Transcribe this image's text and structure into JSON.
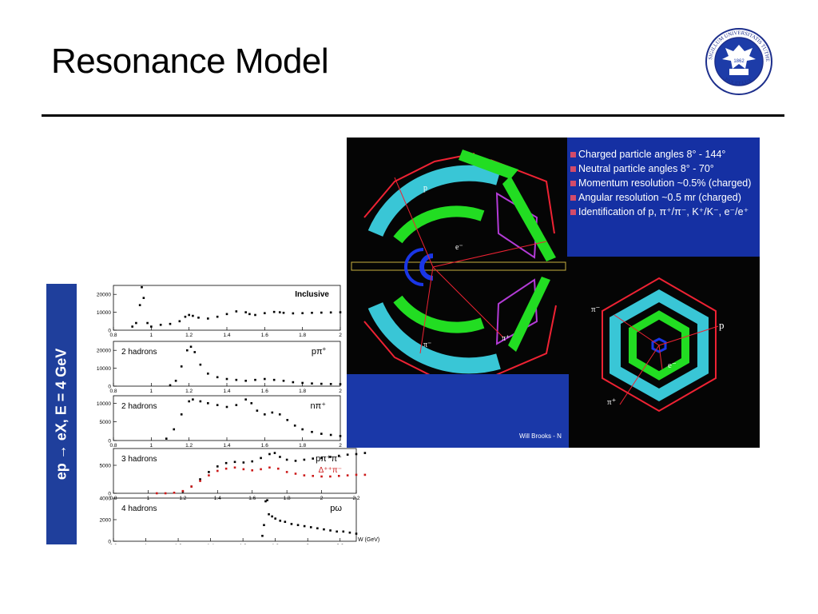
{
  "slide": {
    "title": "Resonance Model"
  },
  "logo": {
    "icon": "university-seal-icon",
    "text": "SIGILLUM UNIVERSITATIS TUTHEENSIS · PAX ET LUX",
    "year": "1862"
  },
  "plot_panel": {
    "side_label": "ep → eX, E = 4 GeV",
    "x_axis_label": "W (GeV)",
    "chart_data": [
      {
        "type": "scatter",
        "title": "Inclusive",
        "xlim": [
          0.8,
          2.0
        ],
        "ylim": [
          0,
          25000
        ],
        "y_ticks": [
          "0",
          "10000",
          "20000"
        ],
        "x_ticks": [
          "0.8",
          "1",
          "1.2",
          "1.4",
          "1.6",
          "1.8",
          "2"
        ],
        "x": [
          0.9,
          0.92,
          0.94,
          0.95,
          0.96,
          0.98,
          1.0,
          1.05,
          1.1,
          1.15,
          1.18,
          1.2,
          1.22,
          1.25,
          1.3,
          1.35,
          1.4,
          1.45,
          1.5,
          1.52,
          1.55,
          1.6,
          1.65,
          1.68,
          1.7,
          1.75,
          1.8,
          1.85,
          1.9,
          1.95,
          2.0
        ],
        "y": [
          2000,
          4000,
          14000,
          24000,
          18000,
          4000,
          2000,
          3000,
          3500,
          5000,
          7500,
          8500,
          8000,
          7000,
          6500,
          7500,
          9000,
          10500,
          10000,
          9000,
          8500,
          9500,
          10200,
          10000,
          9700,
          9400,
          9500,
          9700,
          9800,
          9900,
          10000
        ]
      },
      {
        "type": "scatter",
        "label": "2 hadrons",
        "channel": "pπ°",
        "xlim": [
          0.8,
          2.0
        ],
        "ylim": [
          0,
          25000
        ],
        "y_ticks": [
          "0",
          "10000",
          "20000"
        ],
        "x_ticks": [
          "0.8",
          "1",
          "1.2",
          "1.4",
          "1.6",
          "1.8",
          "2"
        ],
        "x": [
          1.1,
          1.13,
          1.16,
          1.19,
          1.21,
          1.23,
          1.26,
          1.3,
          1.35,
          1.4,
          1.45,
          1.5,
          1.55,
          1.6,
          1.65,
          1.7,
          1.75,
          1.8,
          1.85,
          1.9,
          1.95,
          2.0
        ],
        "y": [
          500,
          3000,
          11000,
          20000,
          22000,
          19000,
          12000,
          7000,
          5000,
          4000,
          3500,
          3000,
          3500,
          4000,
          3500,
          3000,
          2200,
          1800,
          1500,
          1300,
          1200,
          1100
        ]
      },
      {
        "type": "scatter",
        "label": "2 hadrons",
        "channel": "nπ⁺",
        "xlim": [
          0.8,
          2.0
        ],
        "ylim": [
          0,
          12000
        ],
        "y_ticks": [
          "0",
          "5000",
          "10000"
        ],
        "x_ticks": [
          "0.8",
          "1",
          "1.2",
          "1.4",
          "1.6",
          "1.8",
          "2"
        ],
        "x": [
          1.08,
          1.12,
          1.16,
          1.2,
          1.22,
          1.26,
          1.3,
          1.35,
          1.4,
          1.45,
          1.5,
          1.53,
          1.56,
          1.6,
          1.64,
          1.68,
          1.72,
          1.76,
          1.8,
          1.85,
          1.9,
          1.95,
          2.0
        ],
        "y": [
          500,
          3000,
          7000,
          10500,
          11000,
          10500,
          10000,
          9500,
          9000,
          9500,
          11000,
          10000,
          8000,
          7000,
          7500,
          7000,
          5500,
          4000,
          3000,
          2300,
          1800,
          1500,
          1200
        ]
      },
      {
        "type": "scatter",
        "label": "3 hadrons",
        "channel": "pπ⁺π⁻",
        "sub_channel": "Δ⁺⁺π⁻",
        "xlim": [
          0.8,
          2.2
        ],
        "ylim": [
          0,
          8000
        ],
        "y_ticks": [
          "0",
          "5000"
        ],
        "x_ticks": [
          "0.8",
          "1",
          "1.2",
          "1.4",
          "1.6",
          "1.8",
          "2",
          "2.2"
        ],
        "series": [
          {
            "name": "pπ⁺π⁻",
            "color": "#000000",
            "x": [
              1.2,
              1.25,
              1.3,
              1.35,
              1.4,
              1.45,
              1.5,
              1.55,
              1.6,
              1.65,
              1.7,
              1.73,
              1.76,
              1.8,
              1.85,
              1.9,
              1.95,
              2.0,
              2.05,
              2.1,
              2.15,
              2.2,
              2.25
            ],
            "y": [
              300,
              1200,
              2500,
              3800,
              4800,
              5400,
              5600,
              5500,
              5700,
              6300,
              7000,
              7200,
              6500,
              6000,
              5800,
              6000,
              6200,
              6300,
              6500,
              6700,
              6900,
              7000,
              7200
            ]
          },
          {
            "name": "Δ⁺⁺π⁻",
            "color": "#cc1a1a",
            "x": [
              1.05,
              1.1,
              1.15,
              1.2,
              1.25,
              1.3,
              1.35,
              1.4,
              1.45,
              1.5,
              1.55,
              1.6,
              1.65,
              1.7,
              1.75,
              1.8,
              1.85,
              1.9,
              1.95,
              2.0,
              2.05,
              2.1,
              2.15,
              2.2,
              2.25
            ],
            "y": [
              0,
              0,
              100,
              400,
              1200,
              2200,
              3200,
              4000,
              4400,
              4600,
              4300,
              4100,
              4300,
              4600,
              4400,
              3800,
              3500,
              3200,
              3100,
              3000,
              3000,
              3100,
              3200,
              3300,
              3300
            ]
          }
        ]
      },
      {
        "type": "scatter",
        "label": "4 hadrons",
        "channel": "pω",
        "xlim": [
          0.8,
          2.3
        ],
        "ylim": [
          0,
          4000
        ],
        "y_ticks": [
          "0",
          "2000",
          "4000"
        ],
        "x_ticks": [
          "0.8",
          "1",
          "1.2",
          "1.4",
          "1.6",
          "1.8",
          "2",
          "2.2"
        ],
        "x": [
          1.72,
          1.73,
          1.74,
          1.75,
          1.76,
          1.78,
          1.8,
          1.83,
          1.86,
          1.9,
          1.94,
          1.98,
          2.02,
          2.06,
          2.1,
          2.14,
          2.18,
          2.22,
          2.26,
          2.3
        ],
        "y": [
          500,
          1500,
          3700,
          3800,
          2500,
          2300,
          2100,
          1900,
          1800,
          1600,
          1500,
          1400,
          1300,
          1200,
          1100,
          1000,
          900,
          900,
          800,
          700
        ]
      }
    ]
  },
  "detector": {
    "info_items": [
      "Charged particle angles 8° - 144°",
      "Neutral particle angles 8° - 70°",
      "Momentum resolution ~0.5% (charged)",
      "Angular resolution ~0.5 mr (charged)",
      "Identification of p, π⁺/π⁻, K⁺/K⁻, e⁻/e⁺"
    ],
    "side_view_labels": [
      "p",
      "e⁻",
      "π⁻",
      "π⁺"
    ],
    "end_view_labels": [
      "π⁻",
      "p",
      "e⁻",
      "π⁺"
    ],
    "credit": "Will Brooks - N"
  }
}
